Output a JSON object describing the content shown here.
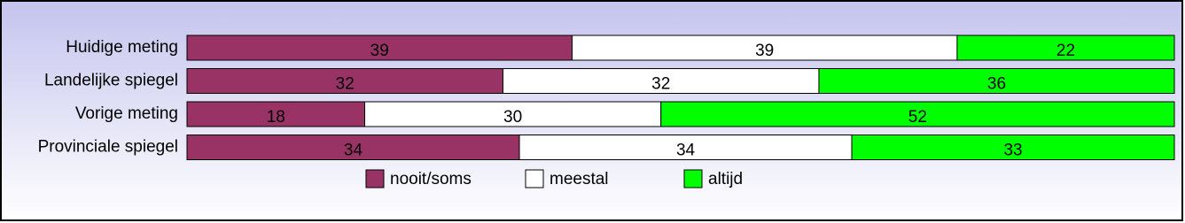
{
  "chart_data": {
    "type": "bar",
    "orientation": "horizontal",
    "stacked": "percent",
    "categories": [
      "Huidige meting",
      "Landelijke spiegel",
      "Vorige meting",
      "Provinciale spiegel"
    ],
    "series": [
      {
        "name": "nooit/soms",
        "color": "#993366",
        "values": [
          39,
          32,
          18,
          34
        ]
      },
      {
        "name": "meestal",
        "color": "#ffffff",
        "values": [
          39,
          32,
          30,
          34
        ]
      },
      {
        "name": "altijd",
        "color": "#00ff00",
        "values": [
          22,
          36,
          52,
          33
        ]
      }
    ],
    "legend": "bottom"
  }
}
